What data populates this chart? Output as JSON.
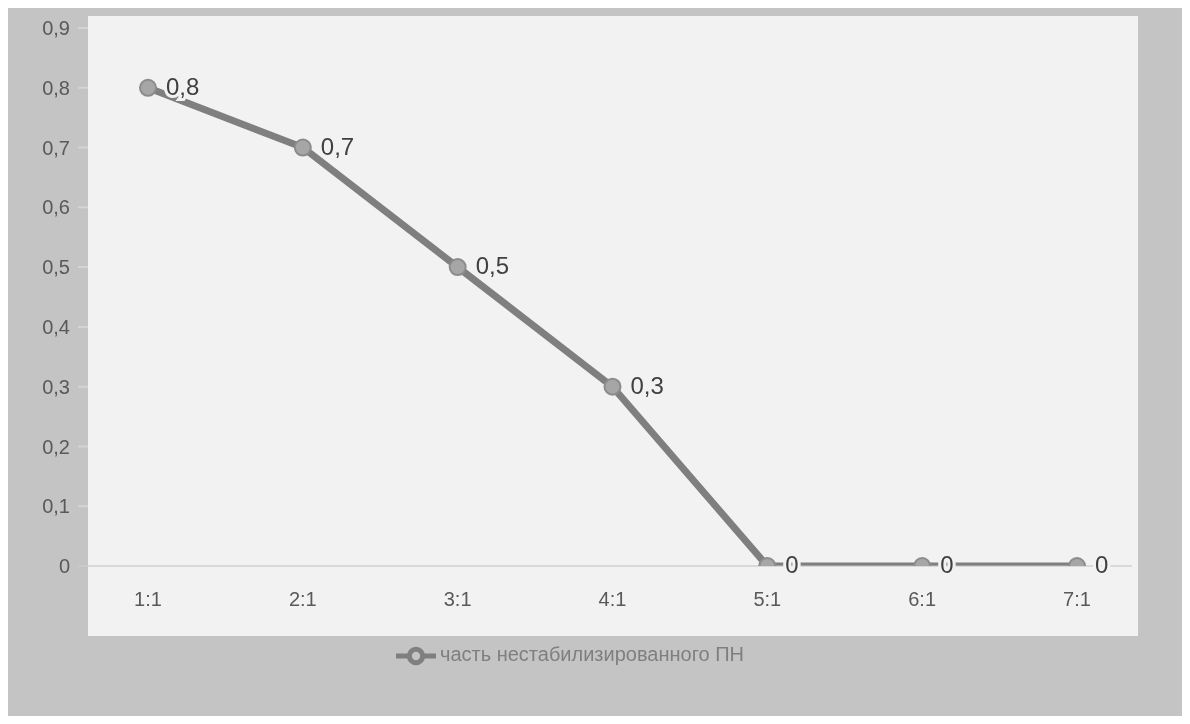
{
  "chart_data": {
    "type": "line",
    "categories": [
      "1:1",
      "2:1",
      "3:1",
      "4:1",
      "5:1",
      "6:1",
      "7:1"
    ],
    "series": [
      {
        "name": "часть нестабилизированного ПН",
        "color": "#7f7f7f",
        "values": [
          0.8,
          0.7,
          0.5,
          0.3,
          0,
          0,
          0
        ],
        "value_labels": [
          "0,8",
          "0,7",
          "0,5",
          "0,3",
          "0",
          "0",
          "0"
        ]
      }
    ],
    "ylim": [
      0,
      0.9
    ],
    "yticks": [
      {
        "value": 0,
        "label": "0"
      },
      {
        "value": 0.1,
        "label": "0,1"
      },
      {
        "value": 0.2,
        "label": "0,2"
      },
      {
        "value": 0.3,
        "label": "0,3"
      },
      {
        "value": 0.4,
        "label": "0,4"
      },
      {
        "value": 0.5,
        "label": "0,5"
      },
      {
        "value": 0.6,
        "label": "0,6"
      },
      {
        "value": 0.7,
        "label": "0,7"
      },
      {
        "value": 0.8,
        "label": "0,8"
      },
      {
        "value": 0.9,
        "label": "0,9"
      }
    ],
    "grid": "y",
    "legend": "bottom",
    "marker": "circle",
    "line_style": "solid"
  }
}
